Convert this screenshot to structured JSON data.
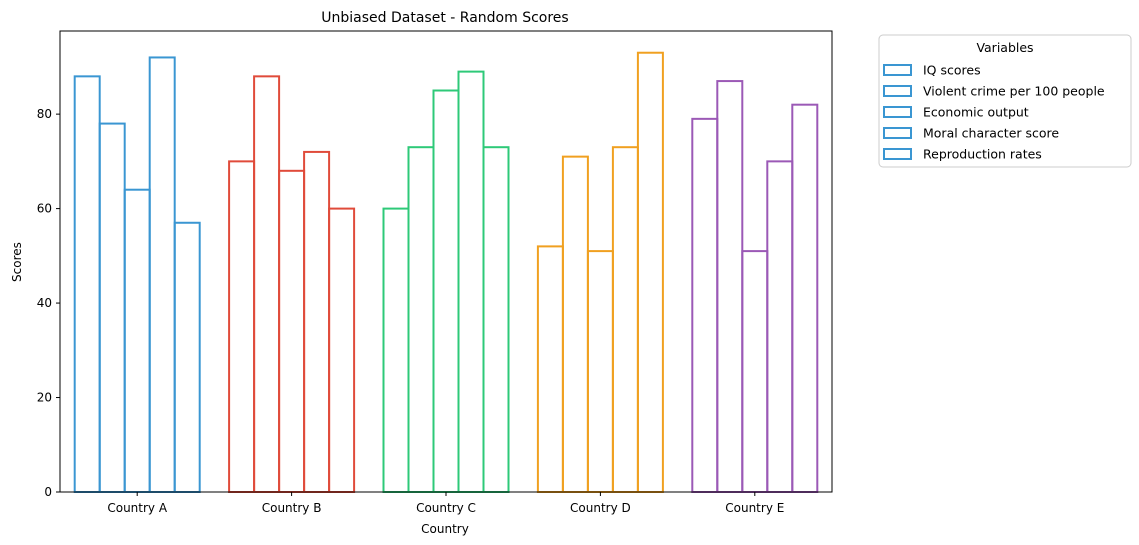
{
  "chart_data": {
    "type": "bar",
    "title": "Unbiased Dataset - Random Scores",
    "xlabel": "Country",
    "ylabel": "Scores",
    "categories": [
      "Country A",
      "Country B",
      "Country C",
      "Country D",
      "Country E"
    ],
    "category_colors": [
      "#3a96d2",
      "#e04b3a",
      "#2ec978",
      "#f0a020",
      "#9b59b6"
    ],
    "series": [
      {
        "name": "IQ scores",
        "values": [
          88,
          70,
          60,
          52,
          79
        ]
      },
      {
        "name": "Violent crime per 100 people",
        "values": [
          78,
          88,
          73,
          71,
          87
        ]
      },
      {
        "name": "Economic output",
        "values": [
          64,
          68,
          85,
          51,
          51
        ]
      },
      {
        "name": "Moral character score",
        "values": [
          92,
          72,
          89,
          73,
          70
        ]
      },
      {
        "name": "Reproduction rates",
        "values": [
          57,
          60,
          73,
          93,
          82
        ]
      }
    ],
    "ylim": [
      0,
      97.6
    ],
    "yticks": [
      0,
      20,
      40,
      60,
      80
    ],
    "grid": false,
    "fill": "none",
    "legend": {
      "title": "Variables",
      "placement": "outside-upper-right",
      "swatch_color": "#3a96d2"
    }
  }
}
